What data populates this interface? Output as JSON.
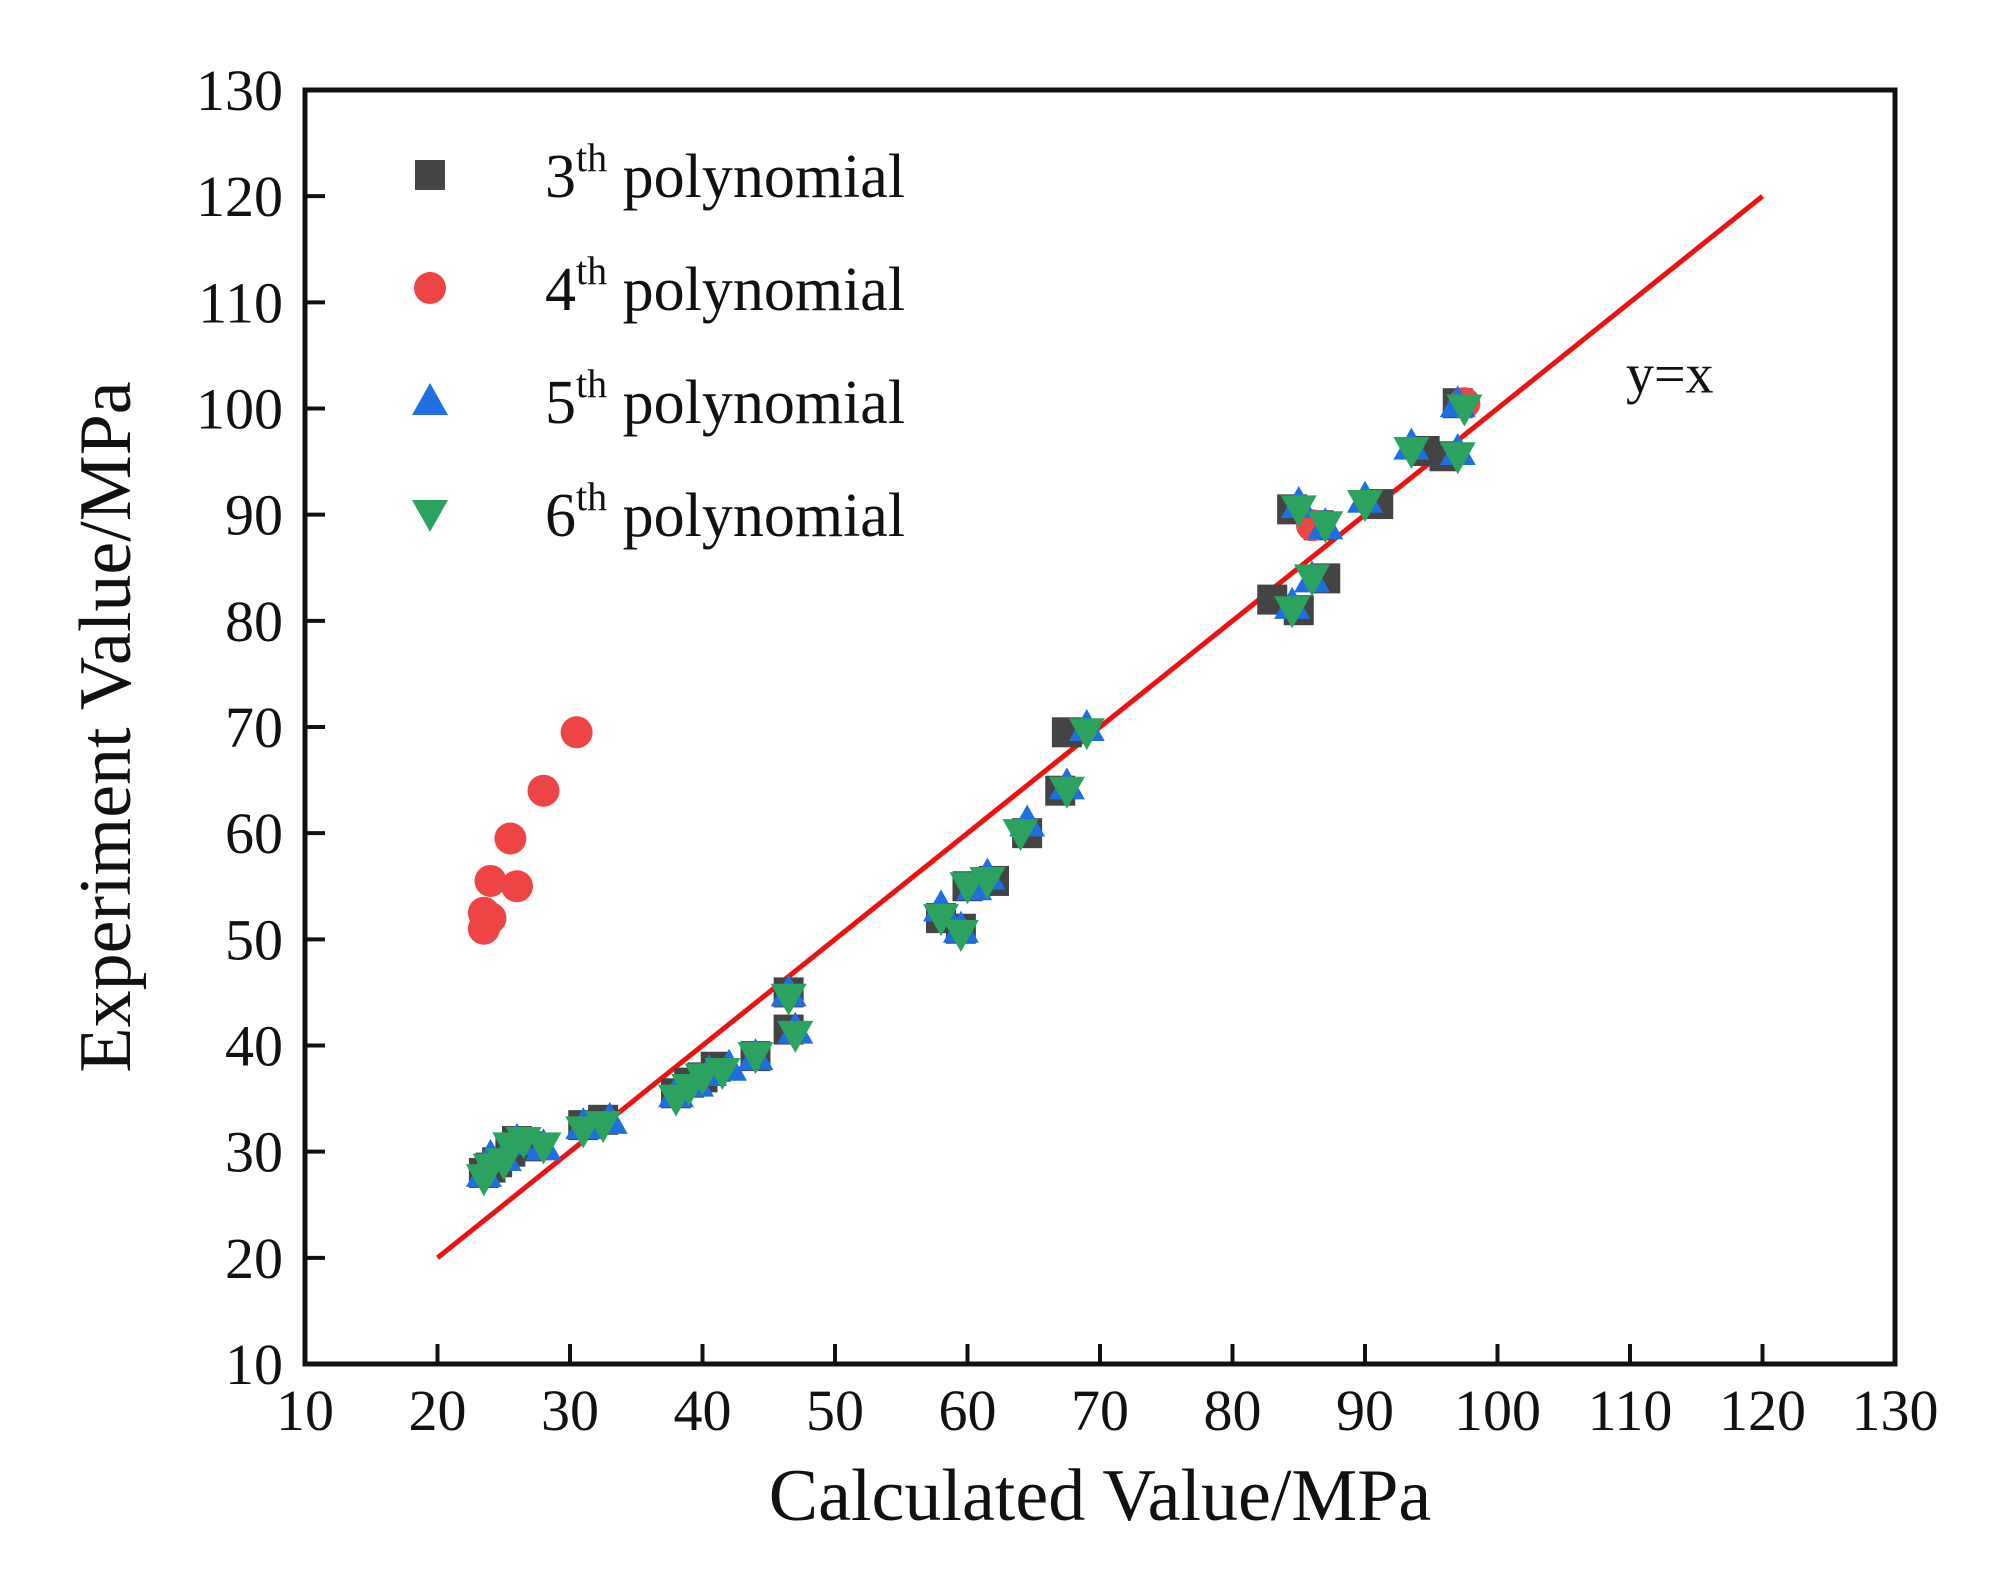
{
  "chart_data": {
    "type": "scatter",
    "xlabel": "Calculated Value/MPa",
    "ylabel": "Experiment Value/MPa",
    "xlim": [
      10,
      130
    ],
    "ylim": [
      10,
      130
    ],
    "x_ticks": [
      10,
      20,
      30,
      40,
      50,
      60,
      70,
      80,
      90,
      100,
      110,
      120,
      130
    ],
    "y_ticks": [
      10,
      20,
      30,
      40,
      50,
      60,
      70,
      80,
      90,
      100,
      110,
      120,
      130
    ],
    "legend_position": "top-left",
    "reference_line": {
      "label": "y=x",
      "color": "#ee1111",
      "x": [
        20,
        120
      ],
      "y": [
        20,
        120
      ]
    },
    "series": [
      {
        "name_base": "3",
        "name_sup": "th",
        "name_rest": " polynomial",
        "marker": "square",
        "color": "#444444",
        "points": [
          [
            23.5,
            28
          ],
          [
            24,
            28.5
          ],
          [
            24.5,
            29
          ],
          [
            25.5,
            30
          ],
          [
            26,
            31
          ],
          [
            27,
            30.5
          ],
          [
            31,
            32.5
          ],
          [
            32.5,
            33
          ],
          [
            38,
            35.5
          ],
          [
            39,
            36.5
          ],
          [
            40,
            37
          ],
          [
            41,
            38
          ],
          [
            44,
            39
          ],
          [
            46.5,
            41.5
          ],
          [
            46.5,
            45
          ],
          [
            58,
            52
          ],
          [
            59.5,
            51
          ],
          [
            60,
            55
          ],
          [
            62,
            55.5
          ],
          [
            64.5,
            60
          ],
          [
            67,
            64
          ],
          [
            67.5,
            69.5
          ],
          [
            83,
            82
          ],
          [
            85,
            81
          ],
          [
            84.5,
            90.5
          ],
          [
            86.5,
            89
          ],
          [
            87,
            84
          ],
          [
            91,
            91
          ],
          [
            94.5,
            96
          ],
          [
            96,
            95.5
          ],
          [
            97,
            100.5
          ]
        ]
      },
      {
        "name_base": "4",
        "name_sup": "th",
        "name_rest": " polynomial",
        "marker": "circle",
        "color": "#ee4444",
        "points": [
          [
            23.5,
            52.5
          ],
          [
            23.5,
            51
          ],
          [
            24,
            52
          ],
          [
            24,
            55.5
          ],
          [
            25.5,
            59.5
          ],
          [
            26,
            55
          ],
          [
            28,
            64
          ],
          [
            30.5,
            69.5
          ],
          [
            86,
            89
          ],
          [
            97.5,
            100.5
          ]
        ]
      },
      {
        "name_base": "5",
        "name_sup": "th",
        "name_rest": " polynomial",
        "marker": "triangle-up",
        "color": "#1f6fe0",
        "points": [
          [
            23.5,
            28
          ],
          [
            24,
            29.5
          ],
          [
            25,
            29.5
          ],
          [
            26,
            31
          ],
          [
            28,
            30.5
          ],
          [
            31,
            32.5
          ],
          [
            33,
            33
          ],
          [
            38,
            35.5
          ],
          [
            39.5,
            36.5
          ],
          [
            40.5,
            37.5
          ],
          [
            42,
            38
          ],
          [
            44,
            39
          ],
          [
            46.5,
            45
          ],
          [
            47,
            41.5
          ],
          [
            58,
            53
          ],
          [
            59.5,
            51
          ],
          [
            60.5,
            55
          ],
          [
            61.5,
            56
          ],
          [
            64.5,
            61
          ],
          [
            67.5,
            64.5
          ],
          [
            69,
            70
          ],
          [
            84.5,
            81.5
          ],
          [
            85,
            91
          ],
          [
            86,
            84
          ],
          [
            87,
            89
          ],
          [
            90,
            91.5
          ],
          [
            93.5,
            96.5
          ],
          [
            97,
            96
          ],
          [
            97,
            100.5
          ]
        ]
      },
      {
        "name_base": "6",
        "name_sup": "th",
        "name_rest": " polynomial",
        "marker": "triangle-down",
        "color": "#2ba35e",
        "points": [
          [
            23.5,
            27.5
          ],
          [
            24,
            28.5
          ],
          [
            25,
            29
          ],
          [
            25.5,
            30.5
          ],
          [
            26.5,
            31
          ],
          [
            28,
            30.5
          ],
          [
            31,
            32
          ],
          [
            32.5,
            32.5
          ],
          [
            38,
            35
          ],
          [
            39,
            36
          ],
          [
            40,
            37
          ],
          [
            41.5,
            37.5
          ],
          [
            44,
            39
          ],
          [
            46.5,
            44.5
          ],
          [
            47,
            41
          ],
          [
            58,
            52
          ],
          [
            59.5,
            50.5
          ],
          [
            60,
            55
          ],
          [
            61.5,
            55.5
          ],
          [
            64,
            60
          ],
          [
            67.5,
            64
          ],
          [
            69,
            69.5
          ],
          [
            84.5,
            81
          ],
          [
            85,
            90.5
          ],
          [
            86,
            84
          ],
          [
            87,
            89
          ],
          [
            90,
            91
          ],
          [
            93.5,
            96
          ],
          [
            97,
            95.5
          ],
          [
            97.5,
            100
          ]
        ]
      }
    ]
  }
}
